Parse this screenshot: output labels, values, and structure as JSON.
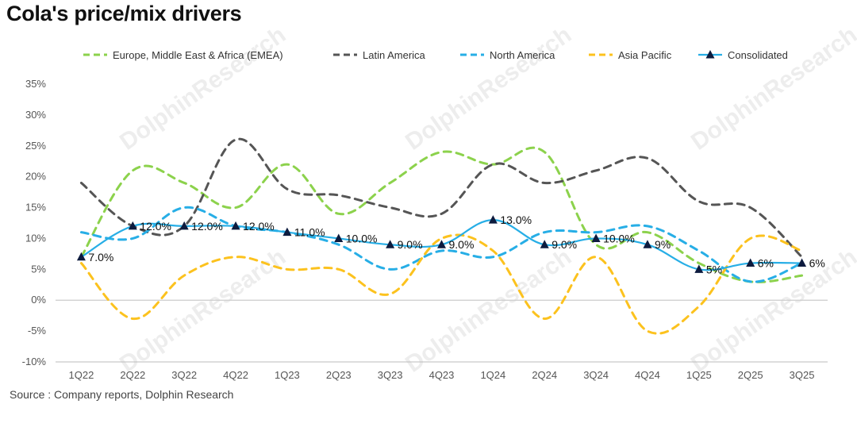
{
  "title": "Cola's price/mix drivers",
  "source": "Source : Company reports, Dolphin Research",
  "watermark": "DolphinResearch",
  "colors": {
    "emea": "#8cd24c",
    "latam": "#555555",
    "na": "#27aee6",
    "apac": "#fcc21e",
    "consolidated": "#27aee6",
    "marker": "#0d1b3e",
    "zero_line": "#cccccc"
  },
  "chart_data": {
    "type": "line",
    "categories": [
      "1Q22",
      "2Q22",
      "3Q22",
      "4Q22",
      "1Q23",
      "2Q23",
      "3Q23",
      "4Q23",
      "1Q24",
      "2Q24",
      "3Q24",
      "4Q24",
      "1Q25",
      "2Q25",
      "3Q25"
    ],
    "ylim": [
      -10,
      35
    ],
    "yticks": [
      -10,
      -5,
      0,
      5,
      10,
      15,
      20,
      25,
      30,
      35
    ],
    "ytick_labels": [
      "-10%",
      "-5%",
      "0%",
      "5%",
      "10%",
      "15%",
      "20%",
      "25%",
      "30%",
      "35%"
    ],
    "legend_position": "top",
    "grid": false,
    "series": [
      {
        "key": "emea",
        "name": "Europe, Middle East & Africa (EMEA)",
        "style": "dashed",
        "values": [
          7,
          21,
          19,
          15,
          22,
          14,
          19,
          24,
          22,
          24,
          9,
          11,
          6,
          3,
          4
        ]
      },
      {
        "key": "latam",
        "name": "Latin America",
        "style": "dashed",
        "values": [
          19,
          12,
          12,
          26,
          18,
          17,
          15,
          14,
          22,
          19,
          21,
          23,
          16,
          15,
          7
        ]
      },
      {
        "key": "na",
        "name": "North America",
        "style": "dashed",
        "values": [
          11,
          10,
          15,
          12,
          11,
          9,
          5,
          8,
          7,
          11,
          11,
          12,
          8,
          3,
          6
        ]
      },
      {
        "key": "apac",
        "name": "Asia Pacific",
        "style": "dashed",
        "values": [
          6,
          -3,
          4,
          7,
          5,
          5,
          1,
          10,
          8,
          -3,
          7,
          -5,
          -1,
          10,
          8
        ]
      },
      {
        "key": "consolidated",
        "name": "Consolidated",
        "style": "solid-marker",
        "values": [
          7,
          12,
          12,
          12,
          11,
          10,
          9,
          9,
          13,
          9,
          10,
          9,
          5,
          6,
          6
        ],
        "labels": [
          "7.0%",
          "12.0%",
          "12.0%",
          "12.0%",
          "11.0%",
          "10.0%",
          "9.0%",
          "9.0%",
          "13.0%",
          "9.0%",
          "10.0%",
          "9%",
          "5%",
          "6%",
          "6%"
        ]
      }
    ]
  }
}
